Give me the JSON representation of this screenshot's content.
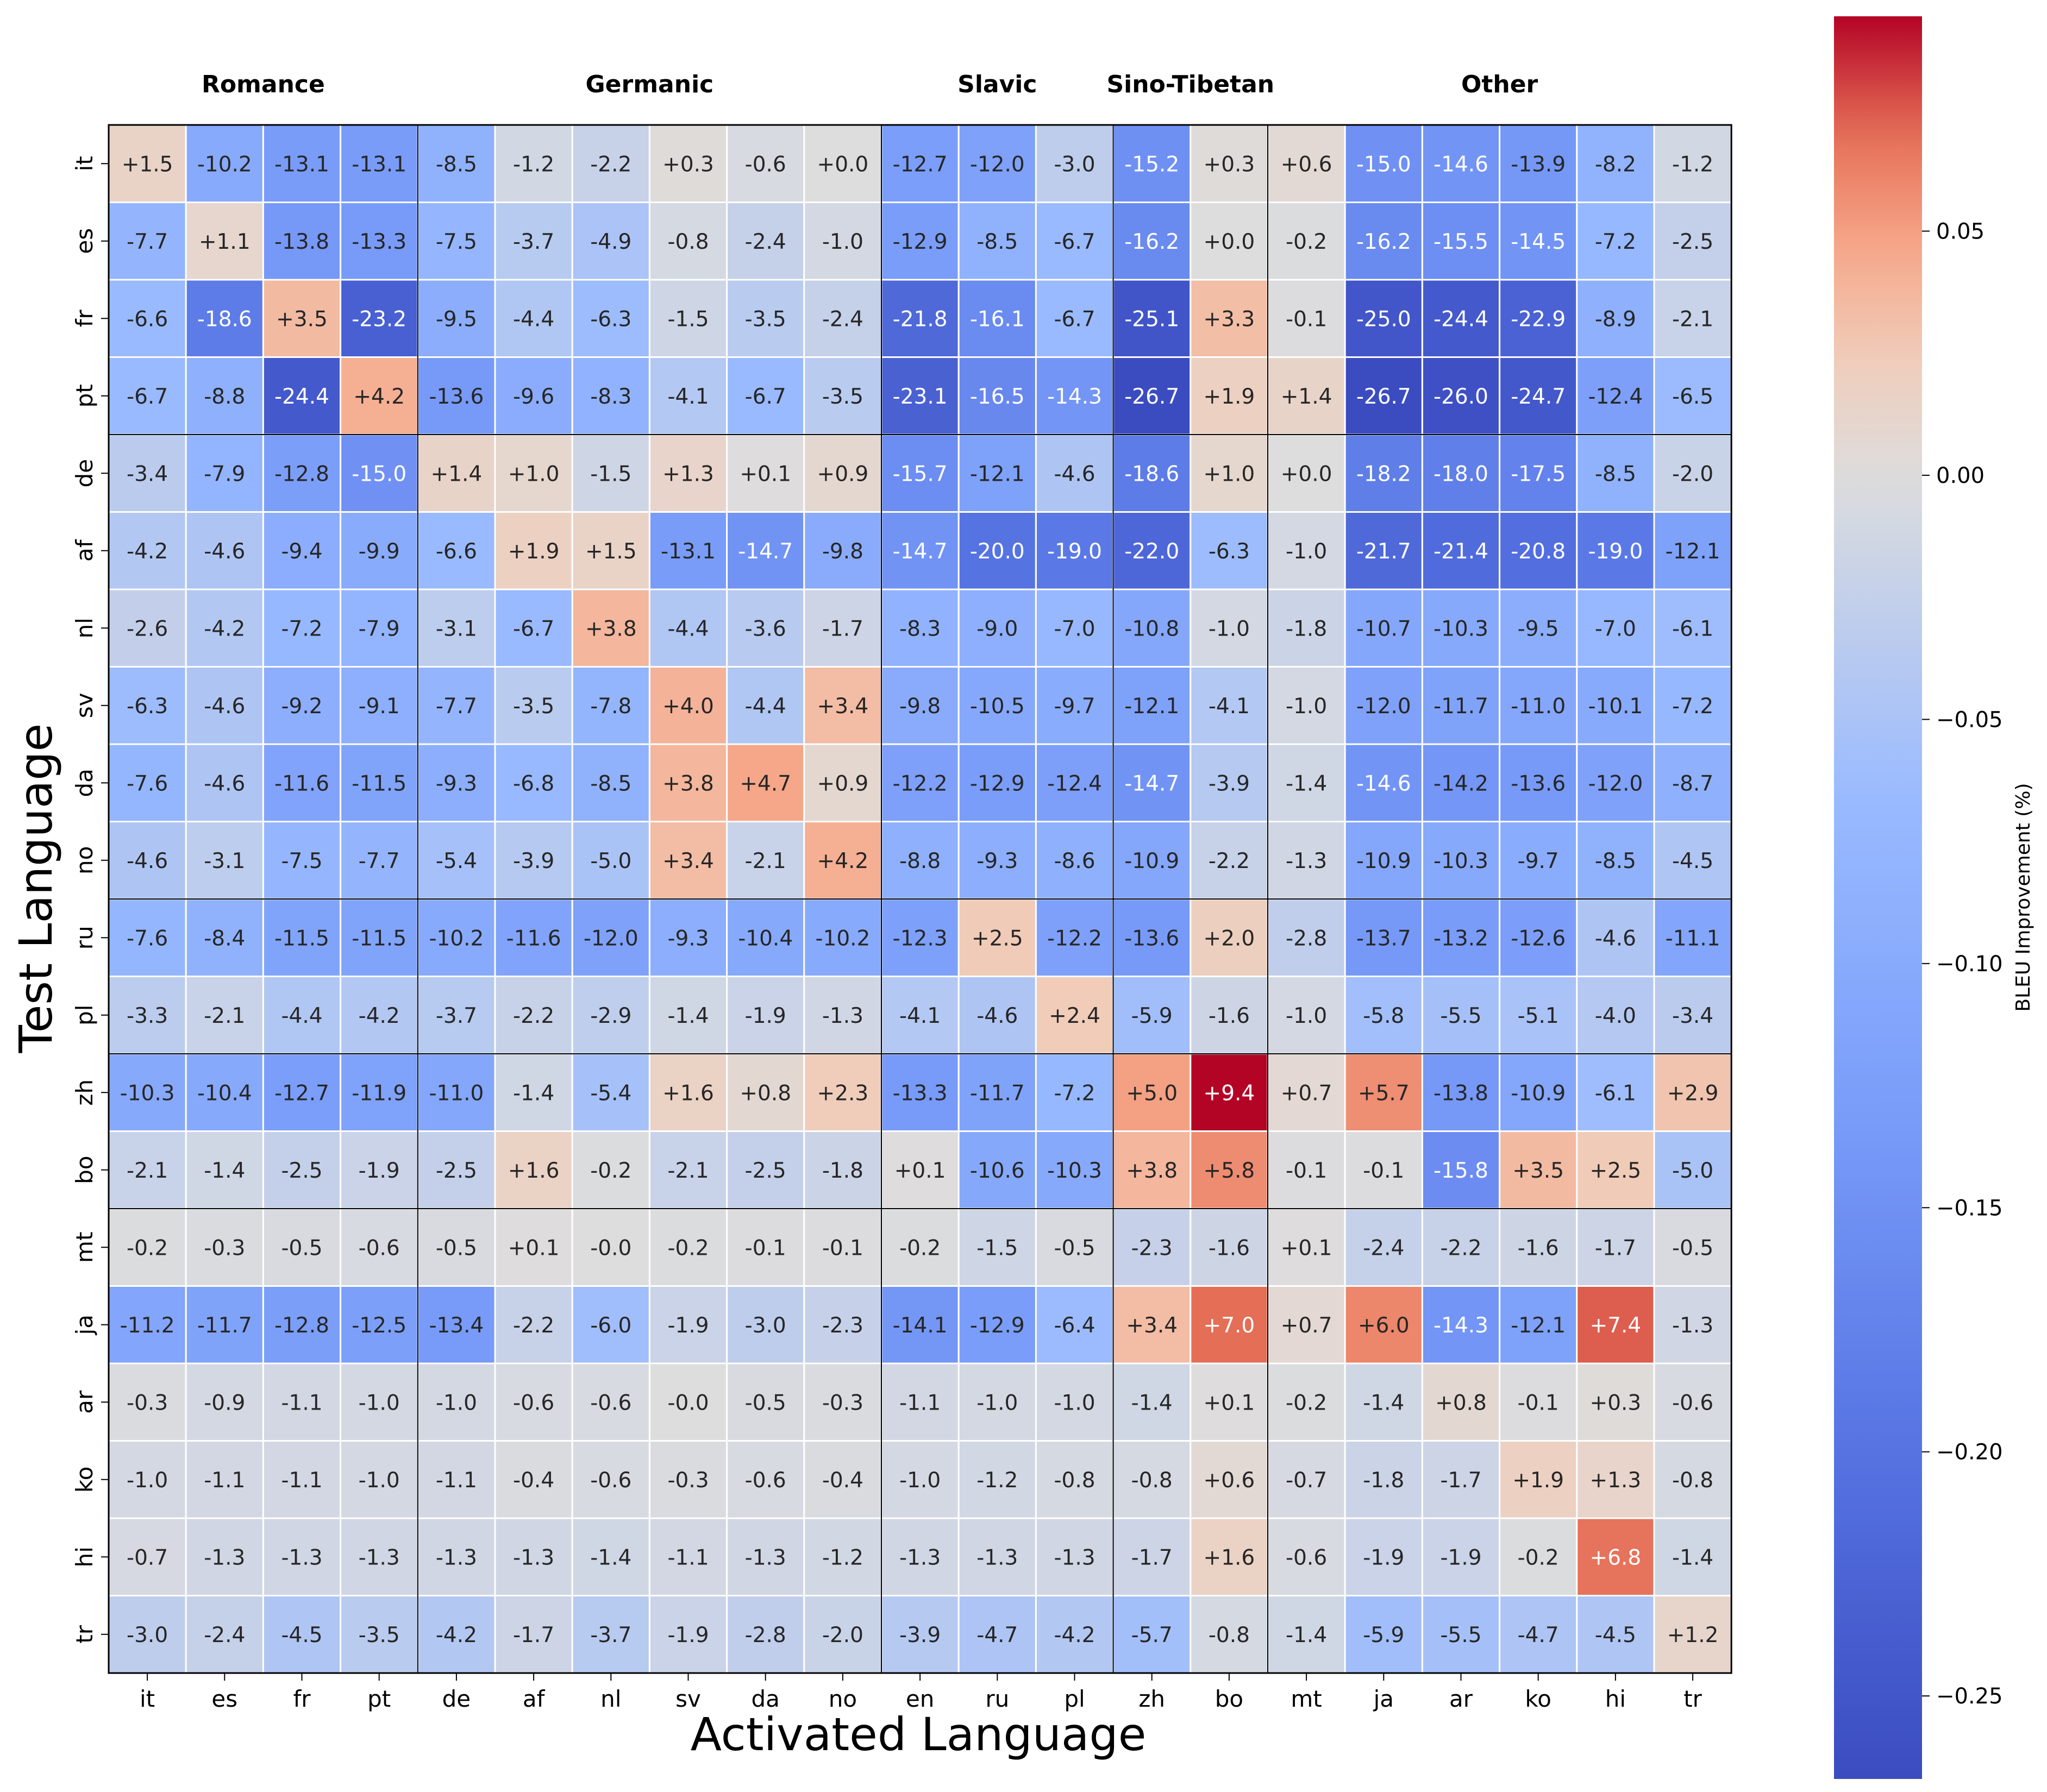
{
  "chart_data": {
    "type": "heatmap",
    "xlabel": "Activated Language",
    "ylabel": "Test Language",
    "x_categories": [
      "it",
      "es",
      "fr",
      "pt",
      "de",
      "af",
      "nl",
      "sv",
      "da",
      "no",
      "en",
      "ru",
      "pl",
      "zh",
      "bo",
      "mt",
      "ja",
      "ar",
      "ko",
      "hi",
      "tr"
    ],
    "y_categories": [
      "it",
      "es",
      "fr",
      "pt",
      "de",
      "af",
      "nl",
      "sv",
      "da",
      "no",
      "ru",
      "pl",
      "zh",
      "bo",
      "mt",
      "ja",
      "ar",
      "ko",
      "hi",
      "tr"
    ],
    "groups": [
      {
        "name": "Romance",
        "start": 0,
        "end": 3
      },
      {
        "name": "Germanic",
        "start": 4,
        "end": 9
      },
      {
        "name": "Slavic",
        "start": 10,
        "end": 12
      },
      {
        "name": "Sino-Tibetan",
        "start": 13,
        "end": 14
      },
      {
        "name": "Other",
        "start": 15,
        "end": 20
      }
    ],
    "row_separators_after": [
      3,
      9,
      11,
      13
    ],
    "values": [
      [
        1.5,
        -10.2,
        -13.1,
        -13.1,
        -8.5,
        -1.2,
        -2.2,
        0.3,
        -0.6,
        0.0,
        -12.7,
        -12.0,
        -3.0,
        -15.2,
        0.3,
        0.6,
        -15.0,
        -14.6,
        -13.9,
        -8.2,
        -1.2
      ],
      [
        -7.7,
        1.1,
        -13.8,
        -13.3,
        -7.5,
        -3.7,
        -4.9,
        -0.8,
        -2.4,
        -1.0,
        -12.9,
        -8.5,
        -6.7,
        -16.2,
        0.0,
        -0.2,
        -16.2,
        -15.5,
        -14.5,
        -7.2,
        -2.5
      ],
      [
        -6.6,
        -18.6,
        3.5,
        -23.2,
        -9.5,
        -4.4,
        -6.3,
        -1.5,
        -3.5,
        -2.4,
        -21.8,
        -16.1,
        -6.7,
        -25.1,
        3.3,
        -0.1,
        -25.0,
        -24.4,
        -22.9,
        -8.9,
        -2.1
      ],
      [
        -6.7,
        -8.8,
        -24.4,
        4.2,
        -13.6,
        -9.6,
        -8.3,
        -4.1,
        -6.7,
        -3.5,
        -23.1,
        -16.5,
        -14.3,
        -26.7,
        1.9,
        1.4,
        -26.7,
        -26.0,
        -24.7,
        -12.4,
        -6.5
      ],
      [
        -3.4,
        -7.9,
        -12.8,
        -15.0,
        1.4,
        1.0,
        -1.5,
        1.3,
        0.1,
        0.9,
        -15.7,
        -12.1,
        -4.6,
        -18.6,
        1.0,
        0.0,
        -18.2,
        -18.0,
        -17.5,
        -8.5,
        -2.0
      ],
      [
        -4.2,
        -4.6,
        -9.4,
        -9.9,
        -6.6,
        1.9,
        1.5,
        -13.1,
        -14.7,
        -9.8,
        -14.7,
        -20.0,
        -19.0,
        -22.0,
        -6.3,
        -1.0,
        -21.7,
        -21.4,
        -20.8,
        -19.0,
        -12.1
      ],
      [
        -2.6,
        -4.2,
        -7.2,
        -7.9,
        -3.1,
        -6.7,
        3.8,
        -4.4,
        -3.6,
        -1.7,
        -8.3,
        -9.0,
        -7.0,
        -10.8,
        -1.0,
        -1.8,
        -10.7,
        -10.3,
        -9.5,
        -7.0,
        -6.1
      ],
      [
        -6.3,
        -4.6,
        -9.2,
        -9.1,
        -7.7,
        -3.5,
        -7.8,
        4.0,
        -4.4,
        3.4,
        -9.8,
        -10.5,
        -9.7,
        -12.1,
        -4.1,
        -1.0,
        -12.0,
        -11.7,
        -11.0,
        -10.1,
        -7.2
      ],
      [
        -7.6,
        -4.6,
        -11.6,
        -11.5,
        -9.3,
        -6.8,
        -8.5,
        3.8,
        4.7,
        0.9,
        -12.2,
        -12.9,
        -12.4,
        -14.7,
        -3.9,
        -1.4,
        -14.6,
        -14.2,
        -13.6,
        -12.0,
        -8.7
      ],
      [
        -4.6,
        -3.1,
        -7.5,
        -7.7,
        -5.4,
        -3.9,
        -5.0,
        3.4,
        -2.1,
        4.2,
        -8.8,
        -9.3,
        -8.6,
        -10.9,
        -2.2,
        -1.3,
        -10.9,
        -10.3,
        -9.7,
        -8.5,
        -4.5
      ],
      [
        -7.6,
        -8.4,
        -11.5,
        -11.5,
        -10.2,
        -11.6,
        -12.0,
        -9.3,
        -10.4,
        -10.2,
        -12.3,
        2.5,
        -12.2,
        -13.6,
        2.0,
        -2.8,
        -13.7,
        -13.2,
        -12.6,
        -4.6,
        -11.1
      ],
      [
        -3.3,
        -2.1,
        -4.4,
        -4.2,
        -3.7,
        -2.2,
        -2.9,
        -1.4,
        -1.9,
        -1.3,
        -4.1,
        -4.6,
        2.4,
        -5.9,
        -1.6,
        -1.0,
        -5.8,
        -5.5,
        -5.1,
        -4.0,
        -3.4
      ],
      [
        -10.3,
        -10.4,
        -12.7,
        -11.9,
        -11.0,
        -1.4,
        -5.4,
        1.6,
        0.8,
        2.3,
        -13.3,
        -11.7,
        -7.2,
        5.0,
        9.4,
        0.7,
        5.7,
        -13.8,
        -10.9,
        -6.1,
        2.9
      ],
      [
        -2.1,
        -1.4,
        -2.5,
        -1.9,
        -2.5,
        1.6,
        -0.2,
        -2.1,
        -2.5,
        -1.8,
        0.1,
        -10.6,
        -10.3,
        3.8,
        5.8,
        -0.1,
        -0.1,
        -15.8,
        3.5,
        2.5,
        -5.0
      ],
      [
        -0.2,
        -0.3,
        -0.5,
        -0.6,
        -0.5,
        0.1,
        -0.0,
        -0.2,
        -0.1,
        -0.1,
        -0.2,
        -1.5,
        -0.5,
        -2.3,
        -1.6,
        0.1,
        -2.4,
        -2.2,
        -1.6,
        -1.7,
        -0.5
      ],
      [
        -11.2,
        -11.7,
        -12.8,
        -12.5,
        -13.4,
        -2.2,
        -6.0,
        -1.9,
        -3.0,
        -2.3,
        -14.1,
        -12.9,
        -6.4,
        3.4,
        7.0,
        0.7,
        6.0,
        -14.3,
        -12.1,
        7.4,
        -1.3
      ],
      [
        -0.3,
        -0.9,
        -1.1,
        -1.0,
        -1.0,
        -0.6,
        -0.6,
        -0.0,
        -0.5,
        -0.3,
        -1.1,
        -1.0,
        -1.0,
        -1.4,
        0.1,
        -0.2,
        -1.4,
        0.8,
        -0.1,
        0.3,
        -0.6
      ],
      [
        -1.0,
        -1.1,
        -1.1,
        -1.0,
        -1.1,
        -0.4,
        -0.6,
        -0.3,
        -0.6,
        -0.4,
        -1.0,
        -1.2,
        -0.8,
        -0.8,
        0.6,
        -0.7,
        -1.8,
        -1.7,
        1.9,
        1.3,
        -0.8
      ],
      [
        -0.7,
        -1.3,
        -1.3,
        -1.3,
        -1.3,
        -1.3,
        -1.4,
        -1.1,
        -1.3,
        -1.2,
        -1.3,
        -1.3,
        -1.3,
        -1.7,
        1.6,
        -0.6,
        -1.9,
        -1.9,
        -0.2,
        6.8,
        -1.4
      ],
      [
        -3.0,
        -2.4,
        -4.5,
        -3.5,
        -4.2,
        -1.7,
        -3.7,
        -1.9,
        -2.8,
        -2.0,
        -3.9,
        -4.7,
        -4.2,
        -5.7,
        -0.8,
        -1.4,
        -5.9,
        -5.5,
        -4.7,
        -4.5,
        1.2
      ]
    ],
    "colorbar": {
      "label": "BLEU Improvement (%)",
      "range": [
        -0.267,
        0.094
      ],
      "ticks": [
        0.05,
        0.0,
        -0.05,
        -0.1,
        -0.15,
        -0.2,
        -0.25
      ],
      "tick_labels": [
        "0.05",
        "0.00",
        "−0.05",
        "−0.10",
        "−0.15",
        "−0.20",
        "−0.25"
      ],
      "colormap": "coolwarm"
    }
  }
}
